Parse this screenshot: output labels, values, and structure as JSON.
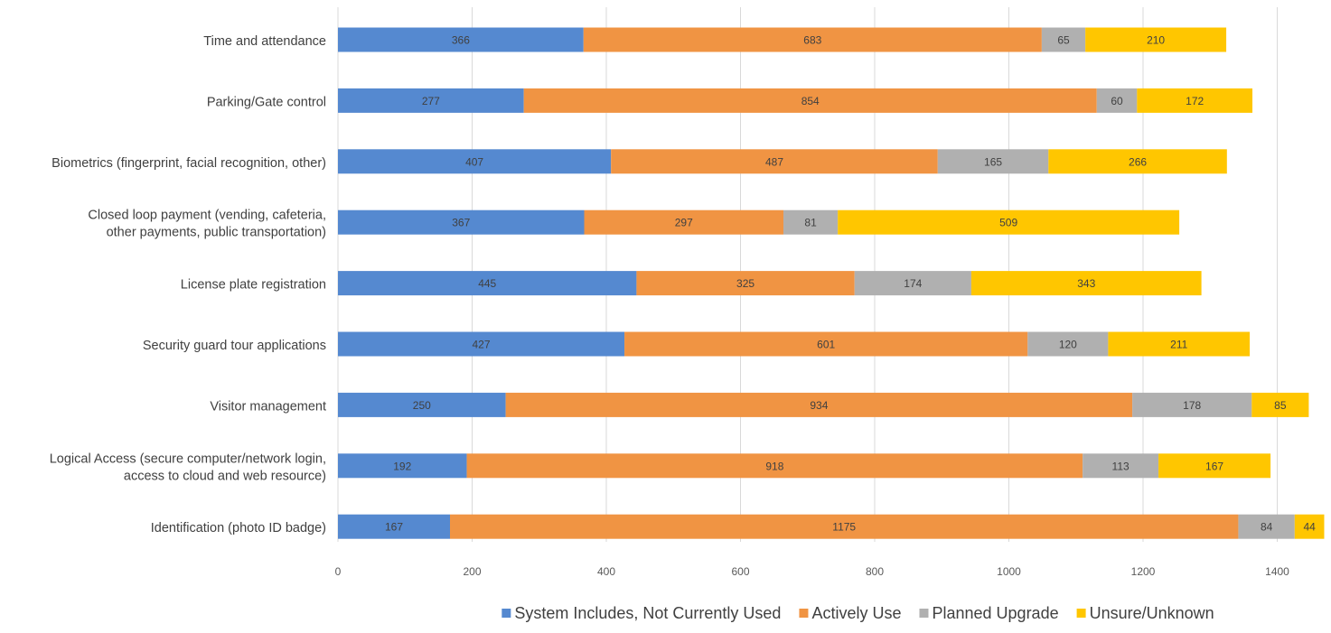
{
  "chart_data": {
    "type": "bar",
    "orientation": "horizontal",
    "stacked": true,
    "categories": [
      "Time and attendance",
      "Parking/Gate control ",
      "Biometrics (fingerprint, facial recognition, other) ",
      "Closed loop payment (vending, cafeteria,\nother payments, public transportation)",
      "License plate registration",
      "Security guard tour applications",
      "Visitor management",
      "Logical Access (secure computer/network login,\naccess to cloud and web resource)",
      "Identification (photo ID badge)"
    ],
    "series": [
      {
        "name": "System Includes, Not Currently Used",
        "color": "#5589d0",
        "values": [
          366,
          277,
          407,
          367,
          445,
          427,
          250,
          192,
          167
        ]
      },
      {
        "name": "Actively Use",
        "color": "#f09443",
        "values": [
          683,
          854,
          487,
          297,
          325,
          601,
          934,
          918,
          1175
        ]
      },
      {
        "name": "Planned Upgrade",
        "color": "#b0b0b0",
        "values": [
          65,
          60,
          165,
          81,
          174,
          120,
          178,
          113,
          84
        ]
      },
      {
        "name": "Unsure/Unknown",
        "color": "#ffc600",
        "values": [
          210,
          172,
          266,
          509,
          343,
          211,
          85,
          167,
          44
        ]
      }
    ],
    "x_ticks": [
      0,
      200,
      400,
      600,
      800,
      1000,
      1200,
      1400
    ],
    "xlim": [
      0,
      1475
    ],
    "grid": "vertical",
    "legend_position": "bottom",
    "data_labels": true
  }
}
